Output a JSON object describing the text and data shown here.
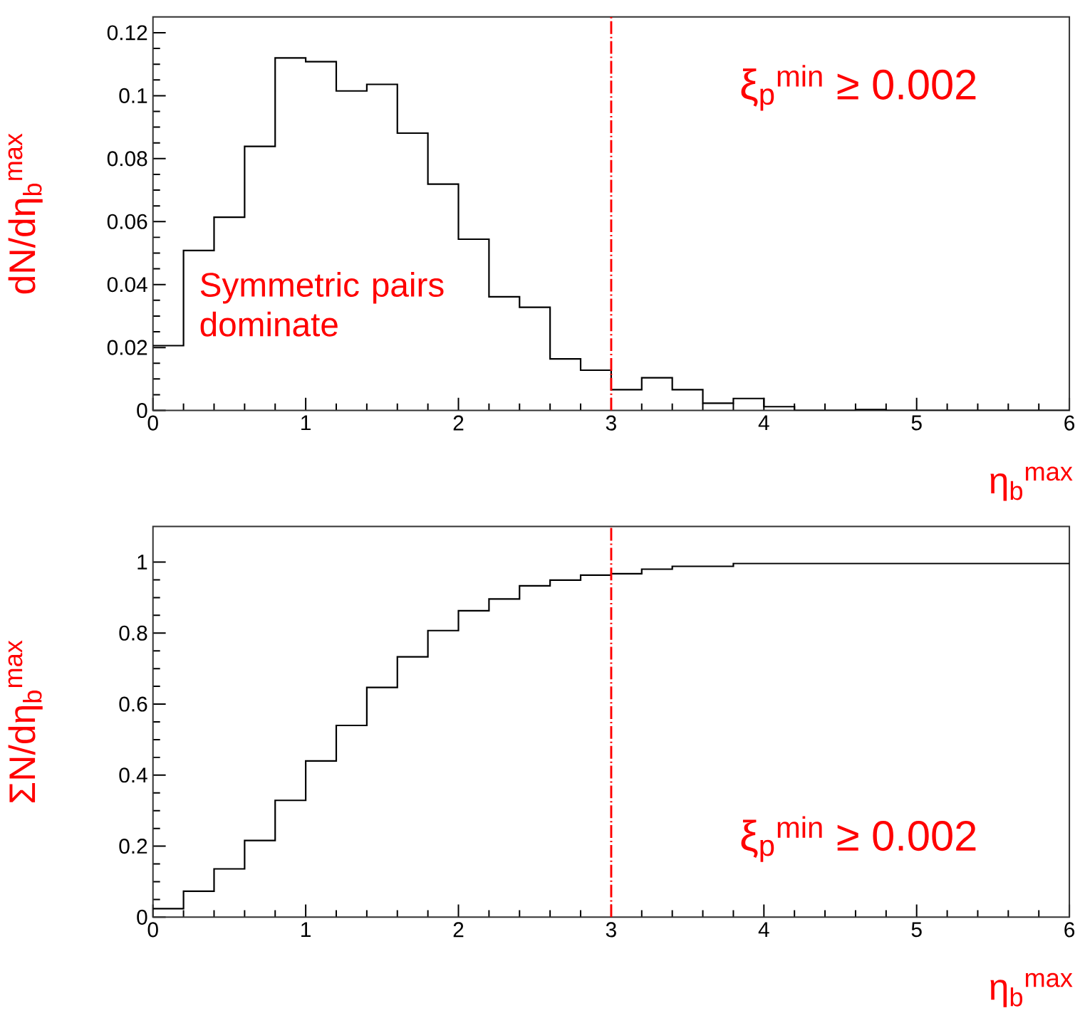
{
  "chart_data": [
    {
      "type": "histogram",
      "ylabel": "dN/dη$_{b}$$^{max}$",
      "xlabel": "η$_{b}$$^{max}$",
      "bins": [
        0,
        0.2,
        0.4,
        0.6,
        0.8,
        1.0,
        1.2,
        1.4,
        1.6,
        1.8,
        2.0,
        2.2,
        2.4,
        2.6,
        2.8,
        3.0,
        3.2,
        3.4,
        3.6,
        3.8,
        4.0,
        4.2,
        4.4,
        4.6,
        4.8,
        5.0,
        5.2,
        5.4,
        5.6,
        5.8,
        6.0
      ],
      "values": [
        0.0206,
        0.0508,
        0.0614,
        0.0839,
        0.112,
        0.1108,
        0.1015,
        0.1036,
        0.0881,
        0.0719,
        0.0544,
        0.0361,
        0.0328,
        0.0164,
        0.0128,
        0.0066,
        0.0104,
        0.0066,
        0.0023,
        0.0038,
        0.0012,
        0,
        0,
        0.0003,
        0,
        0,
        0,
        0,
        0,
        0
      ],
      "color": "#000000",
      "xlim": [
        0,
        6
      ],
      "xticks": [
        0,
        1,
        2,
        3,
        4,
        5,
        6
      ],
      "ylim": [
        0,
        0.125
      ],
      "yticks": [
        0,
        0.02,
        0.04,
        0.06,
        0.08,
        0.1,
        0.12
      ],
      "ref_lines": [
        {
          "axis": "x",
          "value": 3,
          "color": "#ff0000",
          "line_style": "dashdot"
        }
      ],
      "annotations": [
        "ξ$_{p}$$^{min}$ ≥ 0.002",
        "Symmetric pairs dominate"
      ]
    },
    {
      "type": "histogram",
      "ylabel": "ΣN/dη$_{b}$$^{max}$",
      "xlabel": "η$_{b}$$^{max}$",
      "bins": [
        0,
        0.2,
        0.4,
        0.6,
        0.8,
        1.0,
        1.2,
        1.4,
        1.6,
        1.8,
        2.0,
        2.2,
        2.4,
        2.6,
        2.8,
        3.0,
        3.2,
        3.4,
        3.6,
        3.8,
        4.0,
        4.2,
        4.4,
        4.6,
        4.8,
        5.0,
        5.2,
        5.4,
        5.6,
        5.8,
        6.0
      ],
      "values": [
        0.024,
        0.073,
        0.136,
        0.216,
        0.329,
        0.44,
        0.54,
        0.647,
        0.733,
        0.807,
        0.863,
        0.896,
        0.933,
        0.949,
        0.963,
        0.967,
        0.98,
        0.988,
        0.988,
        0.996,
        0.996,
        0.996,
        0.996,
        0.996,
        0.996,
        0.996,
        0.996,
        0.996,
        0.996,
        0.996
      ],
      "color": "#000000",
      "xlim": [
        0,
        6
      ],
      "xticks": [
        0,
        1,
        2,
        3,
        4,
        5,
        6
      ],
      "ylim": [
        0,
        1.1
      ],
      "yticks": [
        0,
        0.2,
        0.4,
        0.6,
        0.8,
        1
      ],
      "ref_lines": [
        {
          "axis": "x",
          "value": 3,
          "color": "#ff0000",
          "line_style": "dashdot"
        }
      ],
      "annotations": [
        "ξ$_{p}$$^{min}$ ≥ 0.002"
      ]
    }
  ]
}
